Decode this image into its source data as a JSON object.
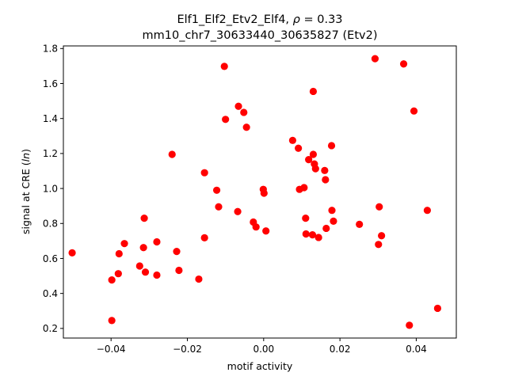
{
  "chart_data": {
    "type": "scatter",
    "title_line1_prefix": "Elf1_Elf2_Etv2_Elf4, ",
    "title_rho_symbol": "ρ",
    "title_rho_value": " = 0.33",
    "title_line2": "mm10_chr7_30633440_30635827 (Etv2)",
    "xlabel": "motif activity",
    "ylabel_prefix": "signal at CRE (",
    "ylabel_italic": "ln",
    "ylabel_suffix": ")",
    "xlim": [
      -0.0525,
      0.0505
    ],
    "ylim": [
      0.145,
      1.815
    ],
    "xticks": [
      -0.04,
      -0.02,
      0.0,
      0.02,
      0.04
    ],
    "xtick_labels": [
      "−0.04",
      "−0.02",
      "0.00",
      "0.02",
      "0.04"
    ],
    "yticks": [
      0.2,
      0.4,
      0.6,
      0.8,
      1.0,
      1.2,
      1.4,
      1.6,
      1.8
    ],
    "ytick_labels": [
      "0.2",
      "0.4",
      "0.6",
      "0.8",
      "1.0",
      "1.2",
      "1.4",
      "1.6",
      "1.8"
    ],
    "grid": false,
    "marker_color": "#ff0000",
    "points": [
      [
        -0.0502,
        0.632
      ],
      [
        -0.0398,
        0.477
      ],
      [
        -0.0398,
        0.245
      ],
      [
        -0.0381,
        0.513
      ],
      [
        -0.0379,
        0.627
      ],
      [
        -0.0365,
        0.685
      ],
      [
        -0.0325,
        0.557
      ],
      [
        -0.0315,
        0.662
      ],
      [
        -0.0313,
        0.83
      ],
      [
        -0.031,
        0.522
      ],
      [
        -0.028,
        0.505
      ],
      [
        -0.028,
        0.695
      ],
      [
        -0.024,
        1.195
      ],
      [
        -0.0228,
        0.64
      ],
      [
        -0.0222,
        0.532
      ],
      [
        -0.017,
        0.482
      ],
      [
        -0.0155,
        0.718
      ],
      [
        -0.0155,
        1.09
      ],
      [
        -0.0123,
        0.99
      ],
      [
        -0.0118,
        0.895
      ],
      [
        -0.0103,
        1.698
      ],
      [
        -0.01,
        1.395
      ],
      [
        -0.0068,
        0.868
      ],
      [
        -0.0066,
        1.47
      ],
      [
        -0.0052,
        1.435
      ],
      [
        -0.0045,
        1.35
      ],
      [
        -0.0027,
        0.808
      ],
      [
        -0.002,
        0.78
      ],
      [
        -0.0001,
        0.995
      ],
      [
        0.0001,
        0.973
      ],
      [
        0.0006,
        0.757
      ],
      [
        0.0076,
        1.275
      ],
      [
        0.0091,
        1.23
      ],
      [
        0.0094,
        0.995
      ],
      [
        0.0106,
        1.005
      ],
      [
        0.011,
        0.83
      ],
      [
        0.0111,
        0.74
      ],
      [
        0.0118,
        1.165
      ],
      [
        0.0128,
        0.735
      ],
      [
        0.013,
        1.555
      ],
      [
        0.013,
        1.195
      ],
      [
        0.0133,
        1.14
      ],
      [
        0.0136,
        1.113
      ],
      [
        0.0144,
        0.72
      ],
      [
        0.016,
        1.103
      ],
      [
        0.0162,
        1.05
      ],
      [
        0.0164,
        0.772
      ],
      [
        0.0178,
        1.245
      ],
      [
        0.0179,
        0.875
      ],
      [
        0.0183,
        0.813
      ],
      [
        0.0251,
        0.795
      ],
      [
        0.0292,
        1.742
      ],
      [
        0.0301,
        0.68
      ],
      [
        0.0303,
        0.895
      ],
      [
        0.0309,
        0.73
      ],
      [
        0.0367,
        1.712
      ],
      [
        0.0382,
        0.218
      ],
      [
        0.0394,
        1.443
      ],
      [
        0.0429,
        0.875
      ],
      [
        0.0456,
        0.315
      ]
    ]
  }
}
